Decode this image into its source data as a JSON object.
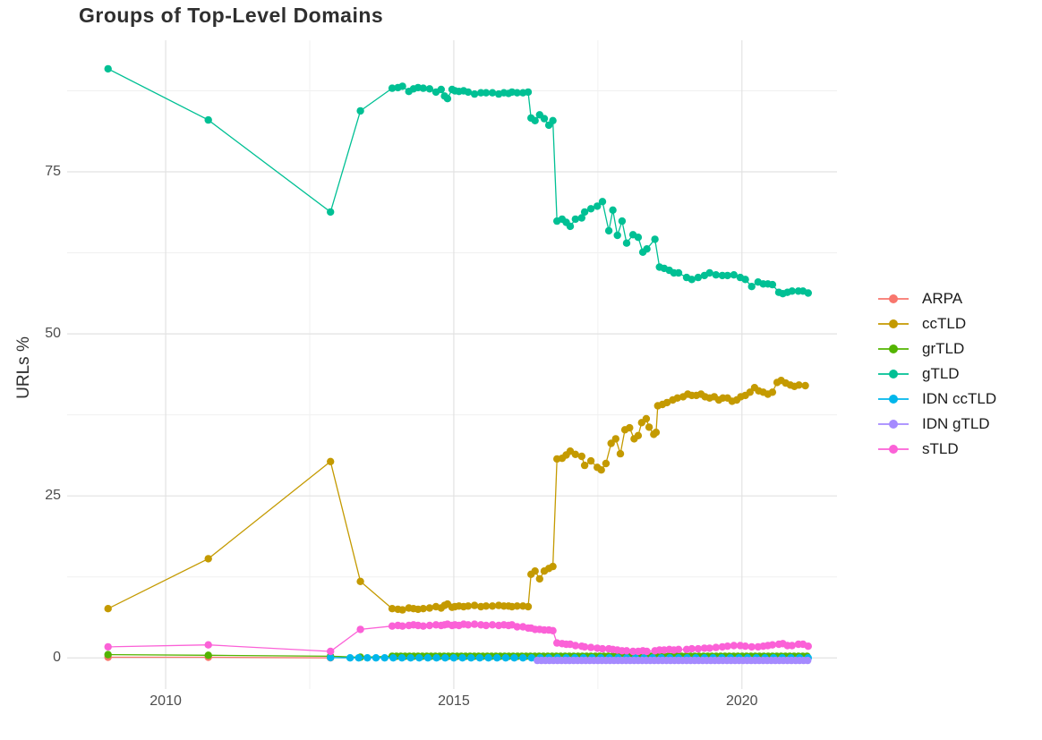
{
  "chart_data": {
    "type": "line",
    "title": "Groups of Top-Level Domains",
    "xlabel": "",
    "ylabel": "URLs %",
    "x_ticks": [
      2010,
      2015,
      2020
    ],
    "x_minor_gridlines": [
      2012.5,
      2017.5
    ],
    "y_ticks": [
      0,
      25,
      50,
      75
    ],
    "y_minor_gridlines": [
      12.5,
      37.5,
      62.5,
      87.5
    ],
    "xlim": [
      2008.29,
      2021.65
    ],
    "ylim": [
      -4.8,
      95.3
    ],
    "grid": true,
    "legend_position": "right",
    "grid_major_color": "#e2e2e2",
    "grid_minor_color": "#f0f0f0",
    "series": [
      {
        "id": "arpa",
        "name": "ARPA",
        "color": "#F8766D",
        "points": [
          [
            2009.0,
            0.1
          ],
          [
            2010.74,
            0.1
          ],
          [
            2012.86,
            0.0
          ]
        ]
      },
      {
        "id": "cctld",
        "name": "ccTLD",
        "color": "#C49A00",
        "points": [
          [
            2009.0,
            7.6
          ],
          [
            2010.74,
            15.3
          ],
          [
            2012.86,
            30.3
          ],
          [
            2013.38,
            11.8
          ],
          [
            2013.93,
            7.6
          ],
          [
            2014.03,
            7.5
          ],
          [
            2014.11,
            7.4
          ],
          [
            2014.22,
            7.7
          ],
          [
            2014.3,
            7.6
          ],
          [
            2014.38,
            7.5
          ],
          [
            2014.47,
            7.6
          ],
          [
            2014.58,
            7.7
          ],
          [
            2014.69,
            7.9
          ],
          [
            2014.78,
            7.7
          ],
          [
            2014.84,
            8.1
          ],
          [
            2014.89,
            8.3
          ],
          [
            2014.97,
            7.8
          ],
          [
            2015.02,
            7.9
          ],
          [
            2015.09,
            8.0
          ],
          [
            2015.17,
            7.9
          ],
          [
            2015.25,
            8.0
          ],
          [
            2015.36,
            8.1
          ],
          [
            2015.47,
            7.9
          ],
          [
            2015.56,
            8.0
          ],
          [
            2015.67,
            8.0
          ],
          [
            2015.78,
            8.1
          ],
          [
            2015.87,
            8.0
          ],
          [
            2015.95,
            8.0
          ],
          [
            2016.01,
            7.9
          ],
          [
            2016.1,
            8.0
          ],
          [
            2016.2,
            8.0
          ],
          [
            2016.29,
            7.9
          ],
          [
            2016.34,
            12.9
          ],
          [
            2016.41,
            13.4
          ],
          [
            2016.49,
            12.2
          ],
          [
            2016.57,
            13.4
          ],
          [
            2016.65,
            13.8
          ],
          [
            2016.72,
            14.1
          ],
          [
            2016.79,
            30.7
          ],
          [
            2016.88,
            30.8
          ],
          [
            2016.95,
            31.3
          ],
          [
            2017.02,
            31.9
          ],
          [
            2017.11,
            31.4
          ],
          [
            2017.22,
            31.1
          ],
          [
            2017.27,
            29.7
          ],
          [
            2017.38,
            30.4
          ],
          [
            2017.49,
            29.4
          ],
          [
            2017.56,
            29.0
          ],
          [
            2017.64,
            30.0
          ],
          [
            2017.73,
            33.1
          ],
          [
            2017.81,
            33.8
          ],
          [
            2017.89,
            31.5
          ],
          [
            2017.97,
            35.2
          ],
          [
            2018.05,
            35.5
          ],
          [
            2018.13,
            33.8
          ],
          [
            2018.2,
            34.3
          ],
          [
            2018.26,
            36.3
          ],
          [
            2018.34,
            36.9
          ],
          [
            2018.39,
            35.6
          ],
          [
            2018.47,
            34.5
          ],
          [
            2018.51,
            34.8
          ],
          [
            2018.54,
            38.9
          ],
          [
            2018.62,
            39.1
          ],
          [
            2018.7,
            39.4
          ],
          [
            2018.8,
            39.8
          ],
          [
            2018.88,
            40.1
          ],
          [
            2018.98,
            40.3
          ],
          [
            2019.06,
            40.7
          ],
          [
            2019.13,
            40.5
          ],
          [
            2019.21,
            40.5
          ],
          [
            2019.29,
            40.7
          ],
          [
            2019.36,
            40.3
          ],
          [
            2019.44,
            40.1
          ],
          [
            2019.52,
            40.3
          ],
          [
            2019.6,
            39.8
          ],
          [
            2019.67,
            40.1
          ],
          [
            2019.75,
            40.1
          ],
          [
            2019.83,
            39.6
          ],
          [
            2019.91,
            39.8
          ],
          [
            2019.98,
            40.3
          ],
          [
            2020.06,
            40.5
          ],
          [
            2020.14,
            41.0
          ],
          [
            2020.22,
            41.7
          ],
          [
            2020.29,
            41.2
          ],
          [
            2020.37,
            41.0
          ],
          [
            2020.45,
            40.7
          ],
          [
            2020.53,
            41.0
          ],
          [
            2020.61,
            42.5
          ],
          [
            2020.68,
            42.8
          ],
          [
            2020.76,
            42.4
          ],
          [
            2020.84,
            42.1
          ],
          [
            2020.91,
            41.9
          ],
          [
            2020.99,
            42.1
          ],
          [
            2021.1,
            42.0
          ]
        ]
      },
      {
        "id": "grtld",
        "name": "grTLD",
        "color": "#53B400",
        "points": [
          [
            2009.0,
            0.5
          ],
          [
            2010.74,
            0.4
          ],
          [
            2012.86,
            0.25
          ],
          [
            2013.38,
            0.1
          ]
        ],
        "range": {
          "from": 2013.93,
          "to": 2021.15,
          "step": 0.075,
          "value": 0.25
        }
      },
      {
        "id": "gtld",
        "name": "gTLD",
        "color": "#00C094",
        "points": [
          [
            2009.0,
            90.9
          ],
          [
            2010.74,
            83.0
          ],
          [
            2012.86,
            68.8
          ],
          [
            2013.38,
            84.4
          ],
          [
            2013.93,
            87.9
          ],
          [
            2014.03,
            88.0
          ],
          [
            2014.11,
            88.2
          ],
          [
            2014.22,
            87.4
          ],
          [
            2014.3,
            87.8
          ],
          [
            2014.38,
            88.0
          ],
          [
            2014.47,
            87.9
          ],
          [
            2014.58,
            87.8
          ],
          [
            2014.69,
            87.3
          ],
          [
            2014.78,
            87.7
          ],
          [
            2014.84,
            86.7
          ],
          [
            2014.89,
            86.3
          ],
          [
            2014.97,
            87.7
          ],
          [
            2015.02,
            87.5
          ],
          [
            2015.09,
            87.4
          ],
          [
            2015.17,
            87.5
          ],
          [
            2015.25,
            87.3
          ],
          [
            2015.36,
            87.0
          ],
          [
            2015.47,
            87.2
          ],
          [
            2015.56,
            87.2
          ],
          [
            2015.67,
            87.2
          ],
          [
            2015.78,
            87.0
          ],
          [
            2015.87,
            87.2
          ],
          [
            2015.95,
            87.1
          ],
          [
            2016.01,
            87.3
          ],
          [
            2016.1,
            87.2
          ],
          [
            2016.2,
            87.2
          ],
          [
            2016.29,
            87.3
          ],
          [
            2016.34,
            83.3
          ],
          [
            2016.41,
            82.9
          ],
          [
            2016.49,
            83.8
          ],
          [
            2016.57,
            83.2
          ],
          [
            2016.65,
            82.2
          ],
          [
            2016.72,
            82.9
          ],
          [
            2016.79,
            67.4
          ],
          [
            2016.88,
            67.7
          ],
          [
            2016.95,
            67.2
          ],
          [
            2017.02,
            66.6
          ],
          [
            2017.11,
            67.7
          ],
          [
            2017.22,
            67.9
          ],
          [
            2017.27,
            68.8
          ],
          [
            2017.38,
            69.3
          ],
          [
            2017.49,
            69.7
          ],
          [
            2017.58,
            70.4
          ],
          [
            2017.69,
            65.9
          ],
          [
            2017.76,
            69.1
          ],
          [
            2017.84,
            65.2
          ],
          [
            2017.92,
            67.4
          ],
          [
            2018.0,
            64.0
          ],
          [
            2018.11,
            65.3
          ],
          [
            2018.2,
            64.9
          ],
          [
            2018.28,
            62.6
          ],
          [
            2018.35,
            63.1
          ],
          [
            2018.49,
            64.6
          ],
          [
            2018.57,
            60.3
          ],
          [
            2018.65,
            60.1
          ],
          [
            2018.74,
            59.8
          ],
          [
            2018.82,
            59.4
          ],
          [
            2018.9,
            59.4
          ],
          [
            2019.04,
            58.7
          ],
          [
            2019.13,
            58.4
          ],
          [
            2019.24,
            58.7
          ],
          [
            2019.35,
            59.0
          ],
          [
            2019.44,
            59.4
          ],
          [
            2019.55,
            59.1
          ],
          [
            2019.66,
            59.0
          ],
          [
            2019.75,
            59.0
          ],
          [
            2019.86,
            59.1
          ],
          [
            2019.97,
            58.7
          ],
          [
            2020.06,
            58.4
          ],
          [
            2020.17,
            57.3
          ],
          [
            2020.28,
            58.0
          ],
          [
            2020.37,
            57.7
          ],
          [
            2020.45,
            57.7
          ],
          [
            2020.53,
            57.6
          ],
          [
            2020.64,
            56.4
          ],
          [
            2020.71,
            56.2
          ],
          [
            2020.79,
            56.4
          ],
          [
            2020.87,
            56.6
          ],
          [
            2020.98,
            56.6
          ],
          [
            2021.06,
            56.6
          ],
          [
            2021.15,
            56.3
          ]
        ]
      },
      {
        "id": "idn-cctld",
        "name": "IDN ccTLD",
        "color": "#00B6EB",
        "points": [
          [
            2012.86,
            0.05
          ]
        ],
        "range": {
          "from": 2013.2,
          "to": 2021.15,
          "step": 0.15,
          "value": 0.0
        }
      },
      {
        "id": "idn-gtld",
        "name": "IDN gTLD",
        "color": "#A58AFF",
        "range": {
          "from": 2016.45,
          "to": 2021.15,
          "step": 0.07,
          "value": -0.4
        }
      },
      {
        "id": "stld",
        "name": "sTLD",
        "color": "#FB61D7",
        "points": [
          [
            2009.0,
            1.7
          ],
          [
            2010.74,
            2.0
          ],
          [
            2012.86,
            1.0
          ],
          [
            2013.38,
            4.4
          ],
          [
            2013.93,
            4.9
          ],
          [
            2014.03,
            5.0
          ],
          [
            2014.11,
            4.9
          ],
          [
            2014.22,
            5.0
          ],
          [
            2014.3,
            5.1
          ],
          [
            2014.38,
            5.0
          ],
          [
            2014.47,
            4.9
          ],
          [
            2014.58,
            5.0
          ],
          [
            2014.69,
            5.1
          ],
          [
            2014.78,
            5.0
          ],
          [
            2014.84,
            5.1
          ],
          [
            2014.89,
            5.2
          ],
          [
            2014.97,
            5.0
          ],
          [
            2015.02,
            5.1
          ],
          [
            2015.09,
            5.0
          ],
          [
            2015.17,
            5.2
          ],
          [
            2015.25,
            5.1
          ],
          [
            2015.36,
            5.2
          ],
          [
            2015.47,
            5.1
          ],
          [
            2015.56,
            5.0
          ],
          [
            2015.67,
            5.1
          ],
          [
            2015.78,
            5.0
          ],
          [
            2015.87,
            5.1
          ],
          [
            2015.95,
            5.0
          ],
          [
            2016.01,
            5.1
          ],
          [
            2016.1,
            4.8
          ],
          [
            2016.2,
            4.8
          ],
          [
            2016.29,
            4.6
          ],
          [
            2016.34,
            4.6
          ],
          [
            2016.41,
            4.4
          ],
          [
            2016.49,
            4.4
          ],
          [
            2016.57,
            4.3
          ],
          [
            2016.65,
            4.3
          ],
          [
            2016.72,
            4.2
          ],
          [
            2016.79,
            2.3
          ],
          [
            2016.88,
            2.2
          ],
          [
            2016.95,
            2.1
          ],
          [
            2017.02,
            2.1
          ],
          [
            2017.11,
            1.9
          ],
          [
            2017.22,
            1.8
          ],
          [
            2017.27,
            1.7
          ],
          [
            2017.38,
            1.6
          ],
          [
            2017.49,
            1.5
          ],
          [
            2017.58,
            1.4
          ],
          [
            2017.69,
            1.4
          ],
          [
            2017.76,
            1.3
          ],
          [
            2017.84,
            1.2
          ],
          [
            2017.92,
            1.1
          ],
          [
            2018.0,
            1.1
          ],
          [
            2018.11,
            1.0
          ],
          [
            2018.2,
            1.0
          ],
          [
            2018.28,
            1.1
          ],
          [
            2018.35,
            1.0
          ],
          [
            2018.49,
            1.1
          ],
          [
            2018.57,
            1.2
          ],
          [
            2018.65,
            1.2
          ],
          [
            2018.74,
            1.3
          ],
          [
            2018.82,
            1.2
          ],
          [
            2018.9,
            1.3
          ],
          [
            2019.04,
            1.3
          ],
          [
            2019.13,
            1.4
          ],
          [
            2019.24,
            1.4
          ],
          [
            2019.35,
            1.5
          ],
          [
            2019.44,
            1.5
          ],
          [
            2019.55,
            1.6
          ],
          [
            2019.66,
            1.7
          ],
          [
            2019.75,
            1.8
          ],
          [
            2019.86,
            1.9
          ],
          [
            2019.97,
            1.9
          ],
          [
            2020.06,
            1.8
          ],
          [
            2020.17,
            1.7
          ],
          [
            2020.28,
            1.7
          ],
          [
            2020.37,
            1.8
          ],
          [
            2020.45,
            1.9
          ],
          [
            2020.53,
            2.0
          ],
          [
            2020.64,
            2.1
          ],
          [
            2020.71,
            2.2
          ],
          [
            2020.79,
            1.9
          ],
          [
            2020.87,
            1.9
          ],
          [
            2020.98,
            2.1
          ],
          [
            2021.06,
            2.1
          ],
          [
            2021.15,
            1.8
          ]
        ]
      }
    ]
  }
}
